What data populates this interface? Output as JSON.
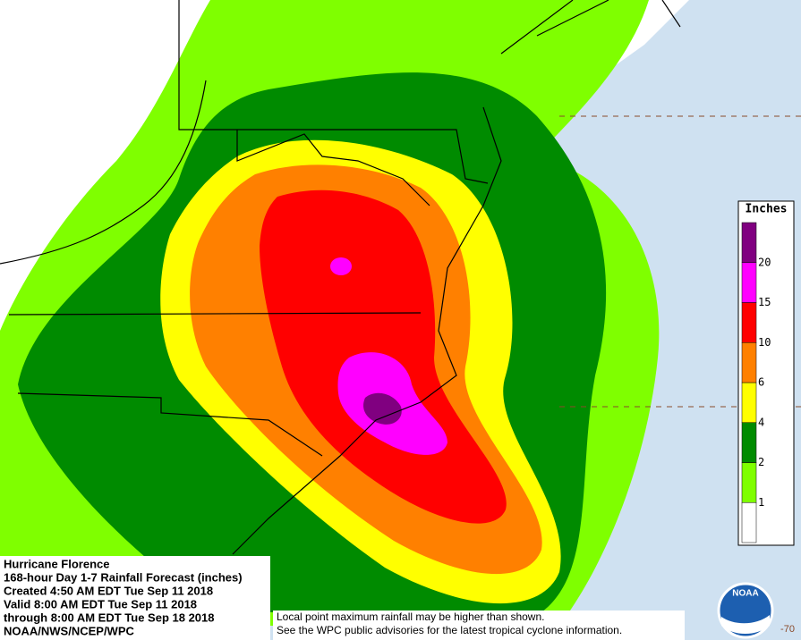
{
  "title_block": {
    "lines": [
      "Hurricane Florence",
      "168-hour Day 1-7 Rainfall Forecast (inches)",
      "Created 4:50 AM EDT Tue Sep 11 2018",
      "Valid 8:00 AM EDT Tue Sep 11 2018",
      "through 8:00 AM EDT Tue Sep 18 2018",
      "NOAA/NWS/NCEP/WPC"
    ]
  },
  "legend": {
    "title": "Inches",
    "ticks": [
      1,
      2,
      4,
      6,
      10,
      15,
      20
    ],
    "colors": [
      "#ffffff",
      "#7fff00",
      "#008b00",
      "#ffff00",
      "#ff8000",
      "#ff0000",
      "#ff00ff",
      "#800080"
    ]
  },
  "disclaimer": {
    "lines": [
      "Local point maximum rainfall may be higher than shown.",
      "See the WPC public advisories for the latest tropical cyclone information."
    ]
  },
  "logo": {
    "text": "NOAA"
  },
  "map": {
    "longitude_label": "-70"
  }
}
